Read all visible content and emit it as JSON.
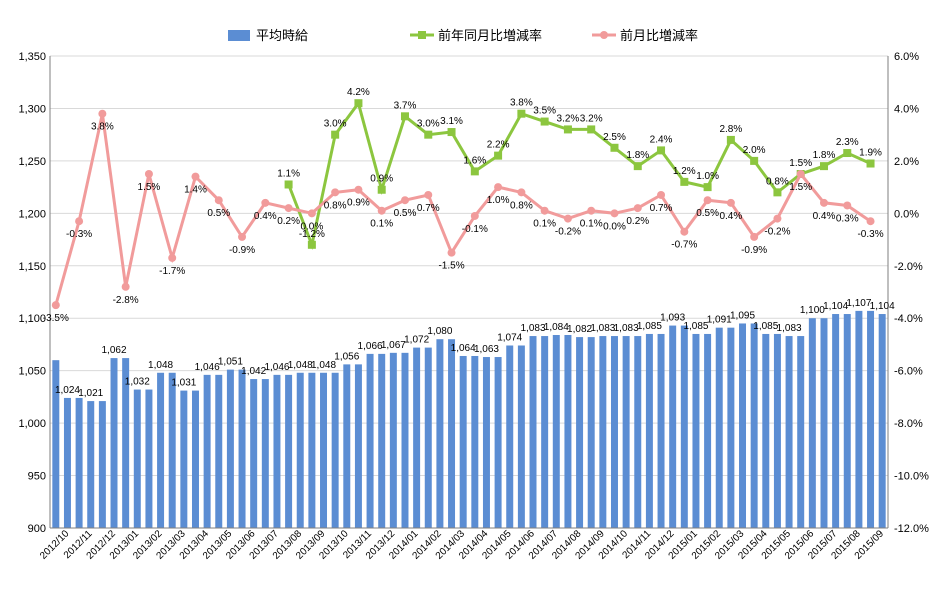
{
  "chart_data": {
    "type": "bar",
    "legend_position": "top",
    "grid": true,
    "colors": {
      "bar": "#5b8dd3",
      "yoy": "#8cc63f",
      "mom": "#f19b9b",
      "grid": "#d9d9d9",
      "axis": "#7f7f7f",
      "text": "#000000"
    },
    "legend": {
      "bar": "平均時給",
      "yoy": "前年同月比増減率",
      "mom": "前月比増減率"
    },
    "y_left": {
      "min": 900,
      "max": 1350,
      "step": 50,
      "ticks": [
        "900",
        "950",
        "1,000",
        "1,050",
        "1,100",
        "1,150",
        "1,200",
        "1,250",
        "1,300",
        "1,350"
      ]
    },
    "y_right": {
      "min": -12.0,
      "max": 6.0,
      "step": 2.0,
      "ticks": [
        "-12.0%",
        "-10.0%",
        "-8.0%",
        "-6.0%",
        "-4.0%",
        "-2.0%",
        "0.0%",
        "2.0%",
        "4.0%",
        "6.0%"
      ]
    },
    "x_ticks": [
      "2012/10",
      "2012/11",
      "2012/12",
      "2013/01",
      "2013/02",
      "2013/03",
      "2013/04",
      "2013/05",
      "2013/06",
      "2013/07",
      "2013/08",
      "2013/09",
      "2013/10",
      "2013/11",
      "2013/12",
      "2014/01",
      "2014/02",
      "2014/03",
      "2014/04",
      "2014/05",
      "2014/06",
      "2014/07",
      "2014/08",
      "2014/09",
      "2014/10",
      "2014/11",
      "2014/12",
      "2015/01",
      "2015/02",
      "2015/03",
      "2015/04",
      "2015/05",
      "2015/06",
      "2015/07",
      "2015/08",
      "2015/09"
    ],
    "series": [
      {
        "name": "平均時給",
        "kind": "bar",
        "axis": "left",
        "values": [
          1060,
          1024,
          1024,
          1021,
          1021,
          1062,
          1062,
          1032,
          1032,
          1048,
          1048,
          1031,
          1031,
          1046,
          1046,
          1051,
          1051,
          1042,
          1042,
          1046,
          1046,
          1048,
          1048,
          1048,
          1048,
          1056,
          1056,
          1066,
          1066,
          1067,
          1067,
          1072,
          1072,
          1080,
          1080,
          1064,
          1064,
          1063,
          1063,
          1074,
          1074,
          1083,
          1083,
          1084,
          1084,
          1082,
          1082,
          1083,
          1083,
          1083,
          1083,
          1085,
          1085,
          1093,
          1093,
          1085,
          1085,
          1091,
          1091,
          1095,
          1095,
          1085,
          1085,
          1083,
          1083,
          1100,
          1100,
          1104,
          1104,
          1107,
          1107,
          1104
        ],
        "labels": [
          {
            "i": 1,
            "text": "1,024"
          },
          {
            "i": 3,
            "text": "1,021"
          },
          {
            "i": 5,
            "text": "1,062"
          },
          {
            "i": 7,
            "text": "1,032"
          },
          {
            "i": 9,
            "text": "1,048"
          },
          {
            "i": 11,
            "text": "1,031"
          },
          {
            "i": 13,
            "text": "1,046"
          },
          {
            "i": 15,
            "text": "1,051"
          },
          {
            "i": 17,
            "text": "1,042"
          },
          {
            "i": 19,
            "text": "1,046"
          },
          {
            "i": 21,
            "text": "1,048"
          },
          {
            "i": 23,
            "text": "1,048"
          },
          {
            "i": 25,
            "text": "1,056"
          },
          {
            "i": 27,
            "text": "1,066"
          },
          {
            "i": 29,
            "text": "1,067"
          },
          {
            "i": 31,
            "text": "1,072"
          },
          {
            "i": 33,
            "text": "1,080"
          },
          {
            "i": 35,
            "text": "1,064"
          },
          {
            "i": 37,
            "text": "1,063"
          },
          {
            "i": 39,
            "text": "1,074"
          },
          {
            "i": 41,
            "text": "1,083"
          },
          {
            "i": 43,
            "text": "1,084"
          },
          {
            "i": 45,
            "text": "1,082"
          },
          {
            "i": 47,
            "text": "1,083"
          },
          {
            "i": 49,
            "text": "1,083"
          },
          {
            "i": 51,
            "text": "1,085"
          },
          {
            "i": 53,
            "text": "1,093"
          },
          {
            "i": 55,
            "text": "1,085"
          },
          {
            "i": 57,
            "text": "1,091"
          },
          {
            "i": 59,
            "text": "1,095"
          },
          {
            "i": 61,
            "text": "1,085"
          },
          {
            "i": 63,
            "text": "1,083"
          },
          {
            "i": 65,
            "text": "1,100"
          },
          {
            "i": 67,
            "text": "1,104"
          },
          {
            "i": 69,
            "text": "1,107"
          },
          {
            "i": 71,
            "text": "1,104"
          }
        ]
      },
      {
        "name": "前年同月比増減率",
        "kind": "line",
        "axis": "right",
        "points": [
          {
            "i": 20,
            "v": 1.1,
            "label": "1.1%"
          },
          {
            "i": 22,
            "v": -1.2,
            "label": "-1.2%"
          },
          {
            "i": 24,
            "v": 3.0,
            "label": "3.0%"
          },
          {
            "i": 26,
            "v": 4.2,
            "label": "4.2%"
          },
          {
            "i": 28,
            "v": 0.9,
            "label": "0.9%"
          },
          {
            "i": 30,
            "v": 3.7,
            "label": "3.7%"
          },
          {
            "i": 32,
            "v": 3.0,
            "label": "3.0%"
          },
          {
            "i": 34,
            "v": 3.1,
            "label": "3.1%"
          },
          {
            "i": 36,
            "v": 1.6,
            "label": "1.6%"
          },
          {
            "i": 38,
            "v": 2.2,
            "label": "2.2%"
          },
          {
            "i": 40,
            "v": 3.8,
            "label": "3.8%"
          },
          {
            "i": 42,
            "v": 3.5,
            "label": "3.5%"
          },
          {
            "i": 44,
            "v": 3.2,
            "label": "3.2%"
          },
          {
            "i": 46,
            "v": 3.2,
            "label": "3.2%"
          },
          {
            "i": 48,
            "v": 2.5,
            "label": "2.5%"
          },
          {
            "i": 50,
            "v": 1.8,
            "label": "1.8%"
          },
          {
            "i": 52,
            "v": 2.4,
            "label": "2.4%"
          },
          {
            "i": 54,
            "v": 1.2,
            "label": "1.2%"
          },
          {
            "i": 56,
            "v": 1.0,
            "label": "1.0%"
          },
          {
            "i": 58,
            "v": 2.8,
            "label": "2.8%"
          },
          {
            "i": 60,
            "v": 2.0,
            "label": "2.0%"
          },
          {
            "i": 62,
            "v": 0.8,
            "label": "0.8%"
          },
          {
            "i": 64,
            "v": 1.5,
            "label": "1.5%"
          },
          {
            "i": 66,
            "v": 1.8,
            "label": "1.8%"
          },
          {
            "i": 68,
            "v": 2.3,
            "label": "2.3%"
          },
          {
            "i": 70,
            "v": 1.9,
            "label": "1.9%"
          }
        ]
      },
      {
        "name": "前月比増減率",
        "kind": "line",
        "axis": "right",
        "points": [
          {
            "i": 0,
            "v": -3.5,
            "label": "-3.5%"
          },
          {
            "i": 2,
            "v": -0.3,
            "label": "-0.3%"
          },
          {
            "i": 4,
            "v": 3.8,
            "label": "3.8%"
          },
          {
            "i": 6,
            "v": -2.8,
            "label": "-2.8%"
          },
          {
            "i": 8,
            "v": 1.5,
            "label": "1.5%"
          },
          {
            "i": 10,
            "v": -1.7,
            "label": "-1.7%"
          },
          {
            "i": 12,
            "v": 1.4,
            "label": "1.4%"
          },
          {
            "i": 14,
            "v": 0.5,
            "label": "0.5%"
          },
          {
            "i": 16,
            "v": -0.9,
            "label": "-0.9%"
          },
          {
            "i": 18,
            "v": 0.4,
            "label": "0.4%"
          },
          {
            "i": 20,
            "v": 0.2,
            "label": "0.2%"
          },
          {
            "i": 22,
            "v": 0.0,
            "label": "0.0%"
          },
          {
            "i": 24,
            "v": 0.8,
            "label": "0.8%"
          },
          {
            "i": 26,
            "v": 0.9,
            "label": "0.9%"
          },
          {
            "i": 28,
            "v": 0.1,
            "label": "0.1%"
          },
          {
            "i": 30,
            "v": 0.5,
            "label": "0.5%"
          },
          {
            "i": 32,
            "v": 0.7,
            "label": "0.7%"
          },
          {
            "i": 34,
            "v": -1.5,
            "label": "-1.5%"
          },
          {
            "i": 36,
            "v": -0.1,
            "label": "-0.1%"
          },
          {
            "i": 38,
            "v": 1.0,
            "label": "1.0%"
          },
          {
            "i": 40,
            "v": 0.8,
            "label": "0.8%"
          },
          {
            "i": 42,
            "v": 0.1,
            "label": "0.1%"
          },
          {
            "i": 44,
            "v": -0.2,
            "label": "-0.2%"
          },
          {
            "i": 46,
            "v": 0.1,
            "label": "0.1%"
          },
          {
            "i": 48,
            "v": 0.0,
            "label": "0.0%"
          },
          {
            "i": 50,
            "v": 0.2,
            "label": "0.2%"
          },
          {
            "i": 52,
            "v": 0.7,
            "label": "0.7%"
          },
          {
            "i": 54,
            "v": -0.7,
            "label": "-0.7%"
          },
          {
            "i": 56,
            "v": 0.5,
            "label": "0.5%"
          },
          {
            "i": 58,
            "v": 0.4,
            "label": "0.4%"
          },
          {
            "i": 60,
            "v": -0.9,
            "label": "-0.9%"
          },
          {
            "i": 62,
            "v": -0.2,
            "label": "-0.2%"
          },
          {
            "i": 64,
            "v": 1.5,
            "label": "1.5%"
          },
          {
            "i": 66,
            "v": 0.4,
            "label": "0.4%"
          },
          {
            "i": 68,
            "v": 0.3,
            "label": "0.3%"
          },
          {
            "i": 70,
            "v": -0.3,
            "label": "-0.3%"
          }
        ]
      }
    ]
  }
}
